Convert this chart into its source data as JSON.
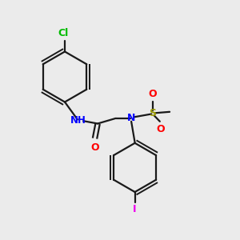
{
  "bg_color": "#ebebeb",
  "bond_color": "#1a1a1a",
  "cl_color": "#00bb00",
  "n_color": "#0000ff",
  "o_color": "#ff0000",
  "s_color": "#999900",
  "i_color": "#ee00ee",
  "lw": 1.6,
  "lw_inner": 1.4,
  "xlim": [
    0,
    10
  ],
  "ylim": [
    0,
    10
  ]
}
